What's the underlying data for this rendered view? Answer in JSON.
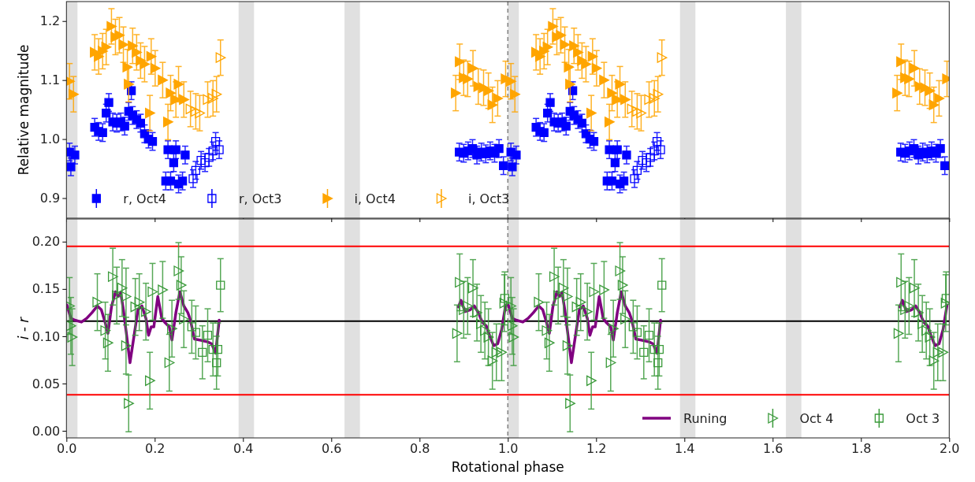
{
  "chart_data": [
    {
      "type": "scatter",
      "ylabel": "Relative magnitude",
      "xlim": [
        0,
        2
      ],
      "xticks": [
        0,
        0.2,
        0.4,
        0.6,
        0.8,
        1,
        1.2,
        1.4,
        1.6,
        1.8,
        2
      ],
      "ylim": [
        0.866,
        1.233
      ],
      "yticks": [
        0.9,
        {
          "value": 1,
          "label": "1.0"
        },
        1.1,
        1.2
      ],
      "tick_labels": "y",
      "legend": "bottom left",
      "bands": [
        {
          "axis": "x",
          "from": 0,
          "to": 0.025,
          "color": "#e0e0e0"
        },
        {
          "axis": "x",
          "from": 0.39,
          "to": 0.425,
          "color": "#e0e0e0"
        },
        {
          "axis": "x",
          "from": 0.63,
          "to": 0.665,
          "color": "#e0e0e0"
        },
        {
          "axis": "x",
          "from": 1.0,
          "to": 1.025,
          "color": "#e0e0e0"
        },
        {
          "axis": "x",
          "from": 1.39,
          "to": 1.425,
          "color": "#e0e0e0"
        },
        {
          "axis": "x",
          "from": 1.63,
          "to": 1.665,
          "color": "#e0e0e0"
        }
      ],
      "ref_lines": [
        {
          "axis": "x",
          "value": 1.0,
          "color": "#808080",
          "line_style": "dashed"
        }
      ],
      "series": [
        {
          "name": "r, Oct4",
          "color": "#0000ff",
          "marker": "square",
          "x": [
            0.007,
            0.01,
            0.019,
            0.064,
            0.073,
            0.082,
            0.09,
            0.096,
            0.105,
            0.114,
            0.123,
            0.132,
            0.141,
            0.147,
            0.15,
            0.159,
            0.168,
            0.177,
            0.186,
            0.195,
            0.23,
            0.225,
            0.236,
            0.243,
            0.248,
            0.254,
            0.263,
            0.269,
            0.89,
            0.9,
            0.91,
            0.92,
            0.93,
            0.94,
            0.95,
            0.96,
            0.97,
            0.98,
            0.99,
            1.007,
            1.01,
            1.019,
            1.064,
            1.073,
            1.082,
            1.09,
            1.096,
            1.105,
            1.114,
            1.123,
            1.132,
            1.141,
            1.147,
            1.15,
            1.159,
            1.168,
            1.177,
            1.186,
            1.195,
            1.23,
            1.225,
            1.236,
            1.243,
            1.248,
            1.254,
            1.263,
            1.269,
            1.89,
            1.9,
            1.91,
            1.92,
            1.93,
            1.94,
            1.95,
            1.96,
            1.97,
            1.98,
            1.99
          ],
          "values": [
            0.978,
            0.953,
            0.973,
            1.02,
            1.013,
            1.011,
            1.044,
            1.062,
            1.029,
            1.027,
            1.029,
            1.022,
            1.047,
            1.082,
            1.04,
            1.033,
            1.027,
            1.009,
            1.0,
            0.996,
            0.982,
            0.929,
            0.929,
            0.96,
            0.982,
            0.924,
            0.929,
            0.973,
            0.978,
            0.976,
            0.98,
            0.984,
            0.973,
            0.978,
            0.975,
            0.98,
            0.976,
            0.984,
            0.955,
            0.978,
            0.953,
            0.973,
            1.02,
            1.013,
            1.011,
            1.044,
            1.062,
            1.029,
            1.027,
            1.029,
            1.022,
            1.047,
            1.082,
            1.04,
            1.033,
            1.027,
            1.009,
            1.0,
            0.996,
            0.982,
            0.929,
            0.929,
            0.96,
            0.982,
            0.924,
            0.929,
            0.973,
            0.978,
            0.976,
            0.98,
            0.984,
            0.973,
            0.978,
            0.975,
            0.98,
            0.976,
            0.984,
            0.955
          ],
          "errors": [
            0.015,
            0.015,
            0.015,
            0.015,
            0.015,
            0.015,
            0.015,
            0.015,
            0.015,
            0.015,
            0.015,
            0.015,
            0.015,
            0.015,
            0.015,
            0.015,
            0.015,
            0.015,
            0.015,
            0.015,
            0.015,
            0.015,
            0.015,
            0.015,
            0.015,
            0.015,
            0.015,
            0.015,
            0.015,
            0.015,
            0.015,
            0.015,
            0.015,
            0.015,
            0.015,
            0.015,
            0.015,
            0.015,
            0.015,
            0.015,
            0.015,
            0.015,
            0.015,
            0.015,
            0.015,
            0.015,
            0.015,
            0.015,
            0.015,
            0.015,
            0.015,
            0.015,
            0.015,
            0.015,
            0.015,
            0.015,
            0.015,
            0.015,
            0.015,
            0.015,
            0.015,
            0.015,
            0.015,
            0.015,
            0.015,
            0.015,
            0.015,
            0.015,
            0.015,
            0.015,
            0.015,
            0.015,
            0.015,
            0.015,
            0.015,
            0.015,
            0.015,
            0.015
          ]
        },
        {
          "name": "r, Oct3",
          "color": "#0000ff",
          "marker": "square",
          "x": [
            0.287,
            0.293,
            0.305,
            0.314,
            0.323,
            0.332,
            0.338,
            0.346,
            1.287,
            1.293,
            1.305,
            1.314,
            1.323,
            1.332,
            1.338,
            1.346
          ],
          "values": [
            0.933,
            0.947,
            0.964,
            0.96,
            0.969,
            0.98,
            0.996,
            0.982,
            0.933,
            0.947,
            0.964,
            0.96,
            0.969,
            0.98,
            0.996,
            0.982
          ],
          "errors": [
            0.015,
            0.015,
            0.015,
            0.015,
            0.015,
            0.015,
            0.015,
            0.015,
            0.015,
            0.015,
            0.015,
            0.015,
            0.015,
            0.015,
            0.015,
            0.015
          ]
        },
        {
          "name": "i,  Oct4",
          "color": "#ffa500",
          "marker": "triangle",
          "x": [
            0.007,
            0.016,
            0.064,
            0.073,
            0.082,
            0.09,
            0.102,
            0.111,
            0.12,
            0.129,
            0.138,
            0.141,
            0.15,
            0.159,
            0.168,
            0.177,
            0.189,
            0.192,
            0.201,
            0.218,
            0.23,
            0.236,
            0.248,
            0.254,
            0.266,
            0.882,
            0.891,
            0.9,
            0.909,
            0.921,
            0.933,
            0.945,
            0.956,
            0.965,
            0.977,
            0.995,
            1.007,
            1.016,
            1.064,
            1.073,
            1.082,
            1.09,
            1.102,
            1.111,
            1.12,
            1.129,
            1.138,
            1.141,
            1.15,
            1.159,
            1.168,
            1.177,
            1.189,
            1.192,
            1.201,
            1.218,
            1.23,
            1.236,
            1.248,
            1.254,
            1.266,
            1.882,
            1.891,
            1.9,
            1.909,
            1.921,
            1.933,
            1.945,
            1.956,
            1.965,
            1.977,
            1.995
          ],
          "values": [
            1.098,
            1.076,
            1.147,
            1.14,
            1.149,
            1.156,
            1.191,
            1.173,
            1.176,
            1.16,
            1.122,
            1.093,
            1.158,
            1.147,
            1.133,
            1.127,
            1.044,
            1.14,
            1.12,
            1.1,
            1.029,
            1.078,
            1.067,
            1.093,
            1.067,
            1.078,
            1.131,
            1.104,
            1.102,
            1.12,
            1.089,
            1.087,
            1.082,
            1.058,
            1.069,
            1.102,
            1.098,
            1.076,
            1.147,
            1.14,
            1.149,
            1.156,
            1.191,
            1.173,
            1.176,
            1.16,
            1.122,
            1.093,
            1.158,
            1.147,
            1.133,
            1.127,
            1.044,
            1.14,
            1.12,
            1.1,
            1.029,
            1.078,
            1.067,
            1.093,
            1.067,
            1.078,
            1.131,
            1.104,
            1.102,
            1.12,
            1.089,
            1.087,
            1.082,
            1.058,
            1.069,
            1.102
          ],
          "errors": [
            0.03,
            0.03,
            0.03,
            0.03,
            0.03,
            0.03,
            0.03,
            0.03,
            0.03,
            0.03,
            0.03,
            0.03,
            0.03,
            0.03,
            0.03,
            0.03,
            0.03,
            0.03,
            0.03,
            0.03,
            0.03,
            0.03,
            0.03,
            0.03,
            0.03,
            0.03,
            0.03,
            0.03,
            0.03,
            0.03,
            0.03,
            0.03,
            0.03,
            0.03,
            0.03,
            0.03,
            0.03,
            0.03,
            0.03,
            0.03,
            0.03,
            0.03,
            0.03,
            0.03,
            0.03,
            0.03,
            0.03,
            0.03,
            0.03,
            0.03,
            0.03,
            0.03,
            0.03,
            0.03,
            0.03,
            0.03,
            0.03,
            0.03,
            0.03,
            0.03,
            0.03,
            0.03,
            0.03,
            0.03,
            0.03,
            0.03,
            0.03,
            0.03,
            0.03,
            0.03,
            0.03,
            0.03
          ]
        },
        {
          "name": "i,  Oct3",
          "color": "#ffa500",
          "marker": "triangle",
          "x": [
            0.281,
            0.293,
            0.302,
            0.32,
            0.332,
            0.34,
            0.349,
            1.281,
            1.293,
            1.302,
            1.32,
            1.332,
            1.34,
            1.349
          ],
          "values": [
            1.051,
            1.047,
            1.044,
            1.067,
            1.069,
            1.076,
            1.138,
            1.051,
            1.047,
            1.044,
            1.067,
            1.069,
            1.076,
            1.138
          ],
          "errors": [
            0.03,
            0.03,
            0.03,
            0.03,
            0.03,
            0.03,
            0.03,
            0.03,
            0.03,
            0.03,
            0.03,
            0.03,
            0.03,
            0.03
          ]
        }
      ]
    },
    {
      "type": "scatter",
      "ylabel": "i - r",
      "xlabel": "Rotational phase",
      "xlim": [
        0,
        2
      ],
      "xticks": [
        {
          "value": 0,
          "label": "0.0"
        },
        0.2,
        0.4,
        0.6,
        0.8,
        {
          "value": 1,
          "label": "1.0"
        },
        1.2,
        1.4,
        1.6,
        1.8,
        {
          "value": 2,
          "label": "2.0"
        }
      ],
      "ylim": [
        -0.0075,
        0.224
      ],
      "yticks": [
        {
          "value": 0,
          "label": "0.00"
        },
        0.05,
        {
          "value": 0.1,
          "label": "0.10"
        },
        0.15,
        {
          "value": 0.2,
          "label": "0.20"
        }
      ],
      "legend": "bottom right",
      "bands": [
        {
          "axis": "x",
          "from": 0,
          "to": 0.025,
          "color": "#e0e0e0"
        },
        {
          "axis": "x",
          "from": 0.39,
          "to": 0.425,
          "color": "#e0e0e0"
        },
        {
          "axis": "x",
          "from": 0.63,
          "to": 0.665,
          "color": "#e0e0e0"
        },
        {
          "axis": "x",
          "from": 1.0,
          "to": 1.025,
          "color": "#e0e0e0"
        },
        {
          "axis": "x",
          "from": 1.39,
          "to": 1.425,
          "color": "#e0e0e0"
        },
        {
          "axis": "x",
          "from": 1.63,
          "to": 1.665,
          "color": "#e0e0e0"
        }
      ],
      "ref_lines": [
        {
          "axis": "x",
          "value": 1.0,
          "color": "#808080",
          "line_style": "dashed"
        },
        {
          "axis": "y",
          "value": 0.195,
          "color": "#ff0000",
          "line_style": "solid"
        },
        {
          "axis": "y",
          "value": 0.038,
          "color": "#ff0000",
          "line_style": "solid"
        },
        {
          "axis": "y",
          "value": 0.116,
          "color": "#000000",
          "line_style": "solid"
        }
      ],
      "series": [
        {
          "name": "Runing",
          "type": "line",
          "color": "#800080",
          "x": [
            0.001,
            0.01,
            0.019,
            0.034,
            0.046,
            0.058,
            0.07,
            0.079,
            0.088,
            0.094,
            0.102,
            0.111,
            0.117,
            0.123,
            0.129,
            0.135,
            0.144,
            0.153,
            0.162,
            0.171,
            0.18,
            0.186,
            0.192,
            0.198,
            0.207,
            0.216,
            0.224,
            0.233,
            0.239,
            0.248,
            0.257,
            0.266,
            0.275,
            0.281,
            0.29,
            0.302,
            0.32,
            0.329,
            0.338,
            0.346,
            0.6,
            0.888,
            0.894,
            0.903,
            0.915,
            0.924,
            0.933,
            0.942,
            0.951,
            0.96,
            0.968,
            0.977,
            0.986,
            0.995,
            1.001,
            1.01,
            1.019,
            1.034,
            1.046,
            1.058,
            1.07,
            1.079,
            1.088,
            1.094,
            1.102,
            1.111,
            1.117,
            1.123,
            1.129,
            1.135,
            1.144,
            1.153,
            1.162,
            1.171,
            1.18,
            1.186,
            1.192,
            1.198,
            1.207,
            1.216,
            1.224,
            1.233,
            1.239,
            1.248,
            1.257,
            1.266,
            1.275,
            1.281,
            1.29,
            1.302,
            1.32,
            1.329,
            1.338,
            1.346,
            1.6,
            1.888,
            1.894,
            1.903,
            1.915,
            1.924,
            1.933,
            1.942,
            1.951,
            1.96,
            1.968,
            1.977,
            1.986,
            1.995
          ],
          "values": [
            0.133,
            0.119,
            0.117,
            0.115,
            0.119,
            0.125,
            0.132,
            0.128,
            0.114,
            0.103,
            0.131,
            0.147,
            0.142,
            0.146,
            0.128,
            0.106,
            0.072,
            0.1,
            0.128,
            0.132,
            0.119,
            0.101,
            0.11,
            0.11,
            0.142,
            0.119,
            0.114,
            0.11,
            0.096,
            0.125,
            0.147,
            0.132,
            0.125,
            0.117,
            0.097,
            0.096,
            0.094,
            0.092,
            0.082,
            0.117,
            null,
            0.131,
            0.138,
            0.126,
            0.128,
            0.132,
            0.125,
            0.115,
            0.111,
            0.099,
            0.09,
            0.092,
            0.107,
            0.133,
            0.133,
            0.119,
            0.117,
            0.115,
            0.119,
            0.125,
            0.132,
            0.128,
            0.114,
            0.103,
            0.131,
            0.147,
            0.142,
            0.146,
            0.128,
            0.106,
            0.072,
            0.1,
            0.128,
            0.132,
            0.119,
            0.101,
            0.11,
            0.11,
            0.142,
            0.119,
            0.114,
            0.11,
            0.096,
            0.125,
            0.147,
            0.132,
            0.125,
            0.117,
            0.097,
            0.096,
            0.094,
            0.092,
            0.082,
            0.117,
            null,
            0.131,
            0.138,
            0.126,
            0.128,
            0.132,
            0.125,
            0.115,
            0.111,
            0.099,
            0.09,
            0.092,
            0.107,
            0.133
          ]
        },
        {
          "name": "Oct 4",
          "color": "#3a9a3a",
          "marker": "triangle",
          "x": [
            0.007,
            0.01,
            0.013,
            0.07,
            0.088,
            0.094,
            0.105,
            0.114,
            0.126,
            0.135,
            0.135,
            0.141,
            0.156,
            0.165,
            0.18,
            0.189,
            0.195,
            0.218,
            0.233,
            0.239,
            0.254,
            0.26,
            0.266,
            0.885,
            0.891,
            0.9,
            0.909,
            0.921,
            0.93,
            0.939,
            0.948,
            0.956,
            0.965,
            0.974,
            0.986,
            0.992,
            1.007,
            1.01,
            1.013,
            1.07,
            1.088,
            1.094,
            1.105,
            1.114,
            1.126,
            1.135,
            1.135,
            1.141,
            1.156,
            1.165,
            1.18,
            1.189,
            1.195,
            1.218,
            1.233,
            1.239,
            1.254,
            1.26,
            1.266,
            1.885,
            1.891,
            1.9,
            1.909,
            1.921,
            1.93,
            1.939,
            1.948,
            1.956,
            1.965,
            1.974,
            1.986,
            1.992
          ],
          "values": [
            0.132,
            0.111,
            0.099,
            0.136,
            0.106,
            0.093,
            0.163,
            0.143,
            0.151,
            0.142,
            0.09,
            0.029,
            0.131,
            0.136,
            0.126,
            0.053,
            0.147,
            0.149,
            0.072,
            0.108,
            0.169,
            0.154,
            0.118,
            0.103,
            0.157,
            0.128,
            0.132,
            0.151,
            0.125,
            0.113,
            0.106,
            0.099,
            0.074,
            0.083,
            0.083,
            0.135,
            0.132,
            0.111,
            0.099,
            0.136,
            0.106,
            0.093,
            0.163,
            0.143,
            0.151,
            0.142,
            0.09,
            0.029,
            0.131,
            0.136,
            0.126,
            0.053,
            0.147,
            0.149,
            0.072,
            0.108,
            0.169,
            0.154,
            0.118,
            0.103,
            0.157,
            0.128,
            0.132,
            0.151,
            0.125,
            0.113,
            0.106,
            0.099,
            0.074,
            0.083,
            0.083,
            0.135
          ],
          "errors": [
            0.03,
            0.03,
            0.03,
            0.03,
            0.03,
            0.03,
            0.03,
            0.03,
            0.03,
            0.03,
            0.03,
            0.03,
            0.03,
            0.03,
            0.03,
            0.03,
            0.03,
            0.03,
            0.03,
            0.03,
            0.03,
            0.03,
            0.03,
            0.03,
            0.03,
            0.03,
            0.03,
            0.03,
            0.03,
            0.03,
            0.03,
            0.03,
            0.03,
            0.03,
            0.03,
            0.03,
            0.03,
            0.03,
            0.03,
            0.03,
            0.03,
            0.03,
            0.03,
            0.03,
            0.03,
            0.03,
            0.03,
            0.03,
            0.03,
            0.03,
            0.03,
            0.03,
            0.03,
            0.03,
            0.03,
            0.03,
            0.03,
            0.03,
            0.03,
            0.03,
            0.03,
            0.03,
            0.03,
            0.03,
            0.03,
            0.03,
            0.03,
            0.03,
            0.03,
            0.03,
            0.03,
            0.03
          ]
        },
        {
          "name": "Oct 3",
          "color": "#3a9a3a",
          "marker": "square",
          "x": [
            0.284,
            0.293,
            0.308,
            0.32,
            0.332,
            0.34,
            0.343,
            0.349,
            0.993,
            1.284,
            1.293,
            1.308,
            1.32,
            1.332,
            1.34,
            1.343,
            1.349,
            1.993
          ],
          "values": [
            0.11,
            0.104,
            0.083,
            0.101,
            0.086,
            0.072,
            0.086,
            0.154,
            0.14,
            0.11,
            0.104,
            0.083,
            0.101,
            0.086,
            0.072,
            0.086,
            0.154,
            0.14
          ],
          "errors": [
            0.028,
            0.028,
            0.028,
            0.028,
            0.028,
            0.028,
            0.028,
            0.028,
            0.028,
            0.028,
            0.028,
            0.028,
            0.028,
            0.028,
            0.028,
            0.028,
            0.028,
            0.028
          ]
        }
      ]
    }
  ]
}
